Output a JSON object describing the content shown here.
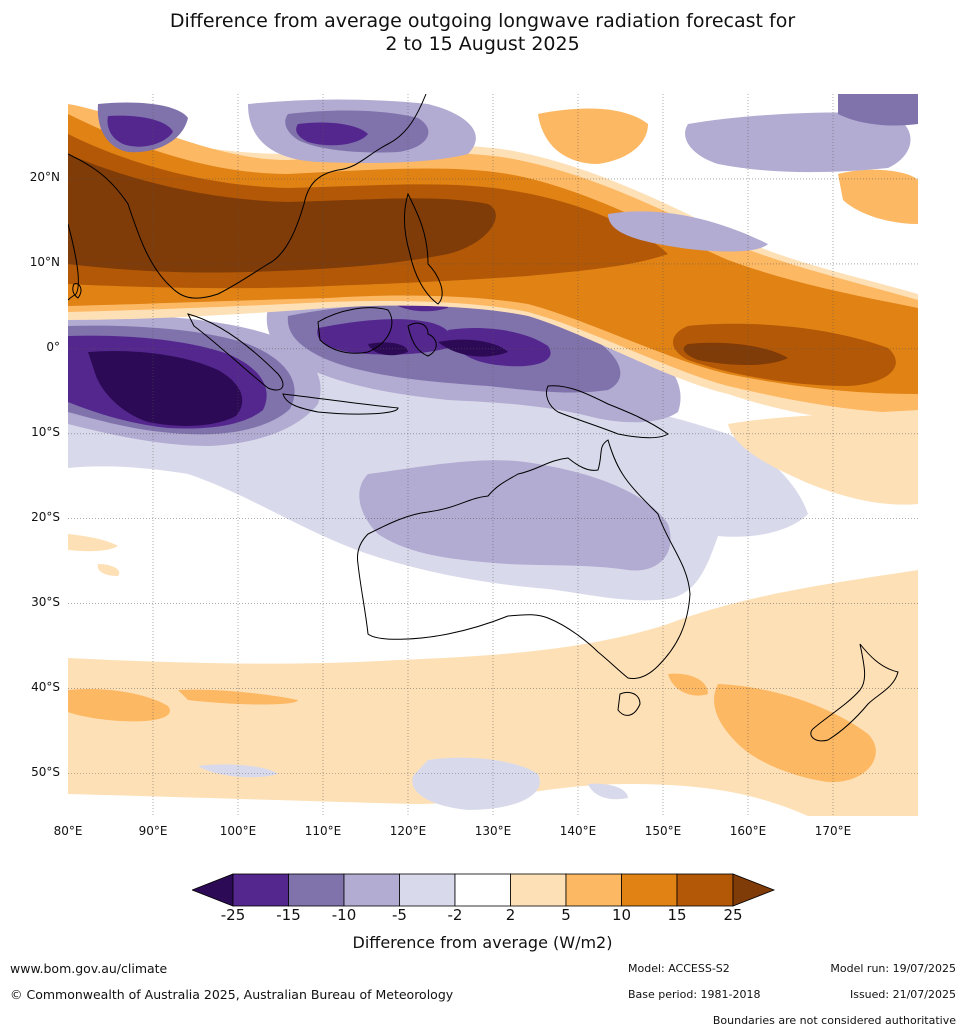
{
  "title": {
    "line1": "Difference from average outgoing longwave radiation forecast for",
    "line2": "2 to 15 August 2025"
  },
  "map": {
    "lat_labels": [
      "20°N",
      "10°N",
      "0°",
      "10°S",
      "20°S",
      "30°S",
      "40°S",
      "50°S"
    ],
    "lon_labels": [
      "80°E",
      "90°E",
      "100°E",
      "110°E",
      "120°E",
      "130°E",
      "140°E",
      "150°E",
      "160°E",
      "170°E"
    ],
    "lon_range": [
      80,
      180
    ],
    "lat_range": [
      -55,
      30
    ]
  },
  "colorbar": {
    "title": "Difference from average (W/m2)",
    "ticks": [
      "-25",
      "-15",
      "-10",
      "-5",
      "-2",
      "2",
      "5",
      "10",
      "15",
      "25"
    ],
    "colors": [
      "#2d0a55",
      "#54278f",
      "#8073ac",
      "#b2abd2",
      "#d8daeb",
      "#ffffff",
      "#fee0b6",
      "#fdb863",
      "#e08214",
      "#b35806",
      "#7f3b08"
    ]
  },
  "footer": {
    "url": "www.bom.gov.au/climate",
    "copyright": "© Commonwealth of Australia 2025, Australian Bureau of Meteorology",
    "model": "Model: ACCESS-S2",
    "base_period": "Base period: 1981-2018",
    "model_run": "Model run: 19/07/2025",
    "issued": "Issued: 21/07/2025",
    "disclaimer": "Boundaries are not considered authoritative"
  }
}
